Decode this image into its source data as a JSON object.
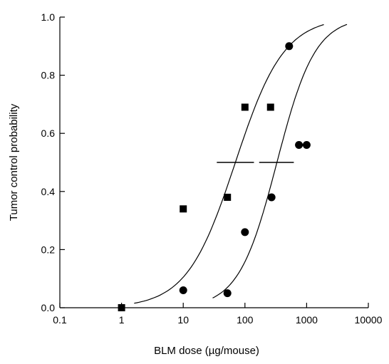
{
  "chart_data": {
    "type": "scatter",
    "title": "",
    "xlabel": "BLM dose (µg/mouse)",
    "ylabel": "Tumor control probability",
    "xscale": "log",
    "xlim": [
      0.1,
      10000
    ],
    "ylim": [
      0.0,
      1.0
    ],
    "x_ticks": [
      0.1,
      1,
      10,
      100,
      1000,
      10000
    ],
    "x_tick_labels": [
      "0.1",
      "1",
      "10",
      "100",
      "1000",
      "10000"
    ],
    "y_ticks": [
      0.0,
      0.2,
      0.4,
      0.6,
      0.8,
      1.0
    ],
    "y_tick_labels": [
      "0.0",
      "0.2",
      "0.4",
      "0.6",
      "0.8",
      "1.0"
    ],
    "grid": false,
    "legend": "none",
    "series": [
      {
        "marker": "square",
        "color": "#000000",
        "points": [
          {
            "x": 1,
            "y": 0.0
          },
          {
            "x": 10,
            "y": 0.34
          },
          {
            "x": 52,
            "y": 0.38
          },
          {
            "x": 100,
            "y": 0.69
          },
          {
            "x": 260,
            "y": 0.69
          }
        ]
      },
      {
        "marker": "circle",
        "color": "#000000",
        "points": [
          {
            "x": 10,
            "y": 0.06
          },
          {
            "x": 52,
            "y": 0.05
          },
          {
            "x": 100,
            "y": 0.26
          },
          {
            "x": 270,
            "y": 0.38
          },
          {
            "x": 520,
            "y": 0.9
          },
          {
            "x": 750,
            "y": 0.56
          },
          {
            "x": 1000,
            "y": 0.56
          }
        ]
      }
    ],
    "fit_curves": [
      {
        "x_range": [
          1.6,
          1900
        ],
        "td50": 70,
        "slope": 1.1
      },
      {
        "x_range": [
          30,
          4500
        ],
        "td50": 330,
        "slope": 1.4
      }
    ],
    "td50_markers": [
      {
        "x_from": 35,
        "x_to": 140,
        "y": 0.5
      },
      {
        "x_from": 170,
        "x_to": 620,
        "y": 0.5
      }
    ]
  }
}
